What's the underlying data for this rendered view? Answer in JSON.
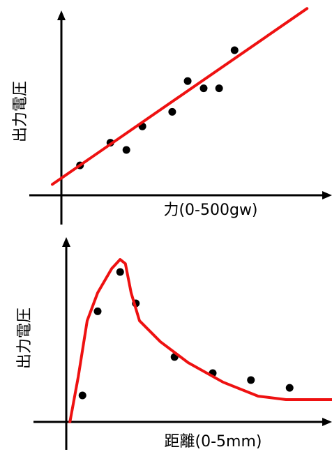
{
  "chart_data": [
    {
      "type": "scatter",
      "x_label": "力(0-500gw)",
      "y_label": "出力電圧",
      "xlim": [
        0,
        500
      ],
      "ylim": [
        0,
        10
      ],
      "series": [
        {
          "color": "#000000",
          "x": [
            35,
            92,
            122,
            152,
            208,
            237,
            267,
            296,
            325
          ],
          "values": [
            1.65,
            2.9,
            2.5,
            3.8,
            4.6,
            6.3,
            5.9,
            5.9,
            8.0
          ]
        },
        {
          "color": "#ee1111",
          "line": true,
          "x": [
            -17,
            461
          ],
          "values": [
            0.6,
            10.3
          ]
        }
      ]
    },
    {
      "type": "scatter",
      "x_label": "距離(0-5mm)",
      "y_label": "出力電圧",
      "xlim": [
        0,
        5
      ],
      "ylim": [
        0,
        10
      ],
      "series": [
        {
          "color": "#000000",
          "x": [
            0.31,
            0.6,
            1.03,
            1.33,
            2.07,
            2.8,
            3.53,
            4.27
          ],
          "values": [
            1.46,
            6.1,
            8.27,
            6.54,
            3.58,
            2.69,
            2.31,
            1.88
          ]
        },
        {
          "color": "#ee1111",
          "line": true,
          "x": [
            0.07,
            0.23,
            0.4,
            0.6,
            0.87,
            1.03,
            1.13,
            1.24,
            1.4,
            1.8,
            2.33,
            3.0,
            3.67,
            4.2,
            5.08
          ],
          "values": [
            0,
            2.5,
            5.58,
            7.12,
            8.46,
            8.96,
            8.73,
            7.12,
            5.58,
            4.42,
            3.27,
            2.19,
            1.42,
            1.23,
            1.23
          ]
        }
      ]
    }
  ]
}
